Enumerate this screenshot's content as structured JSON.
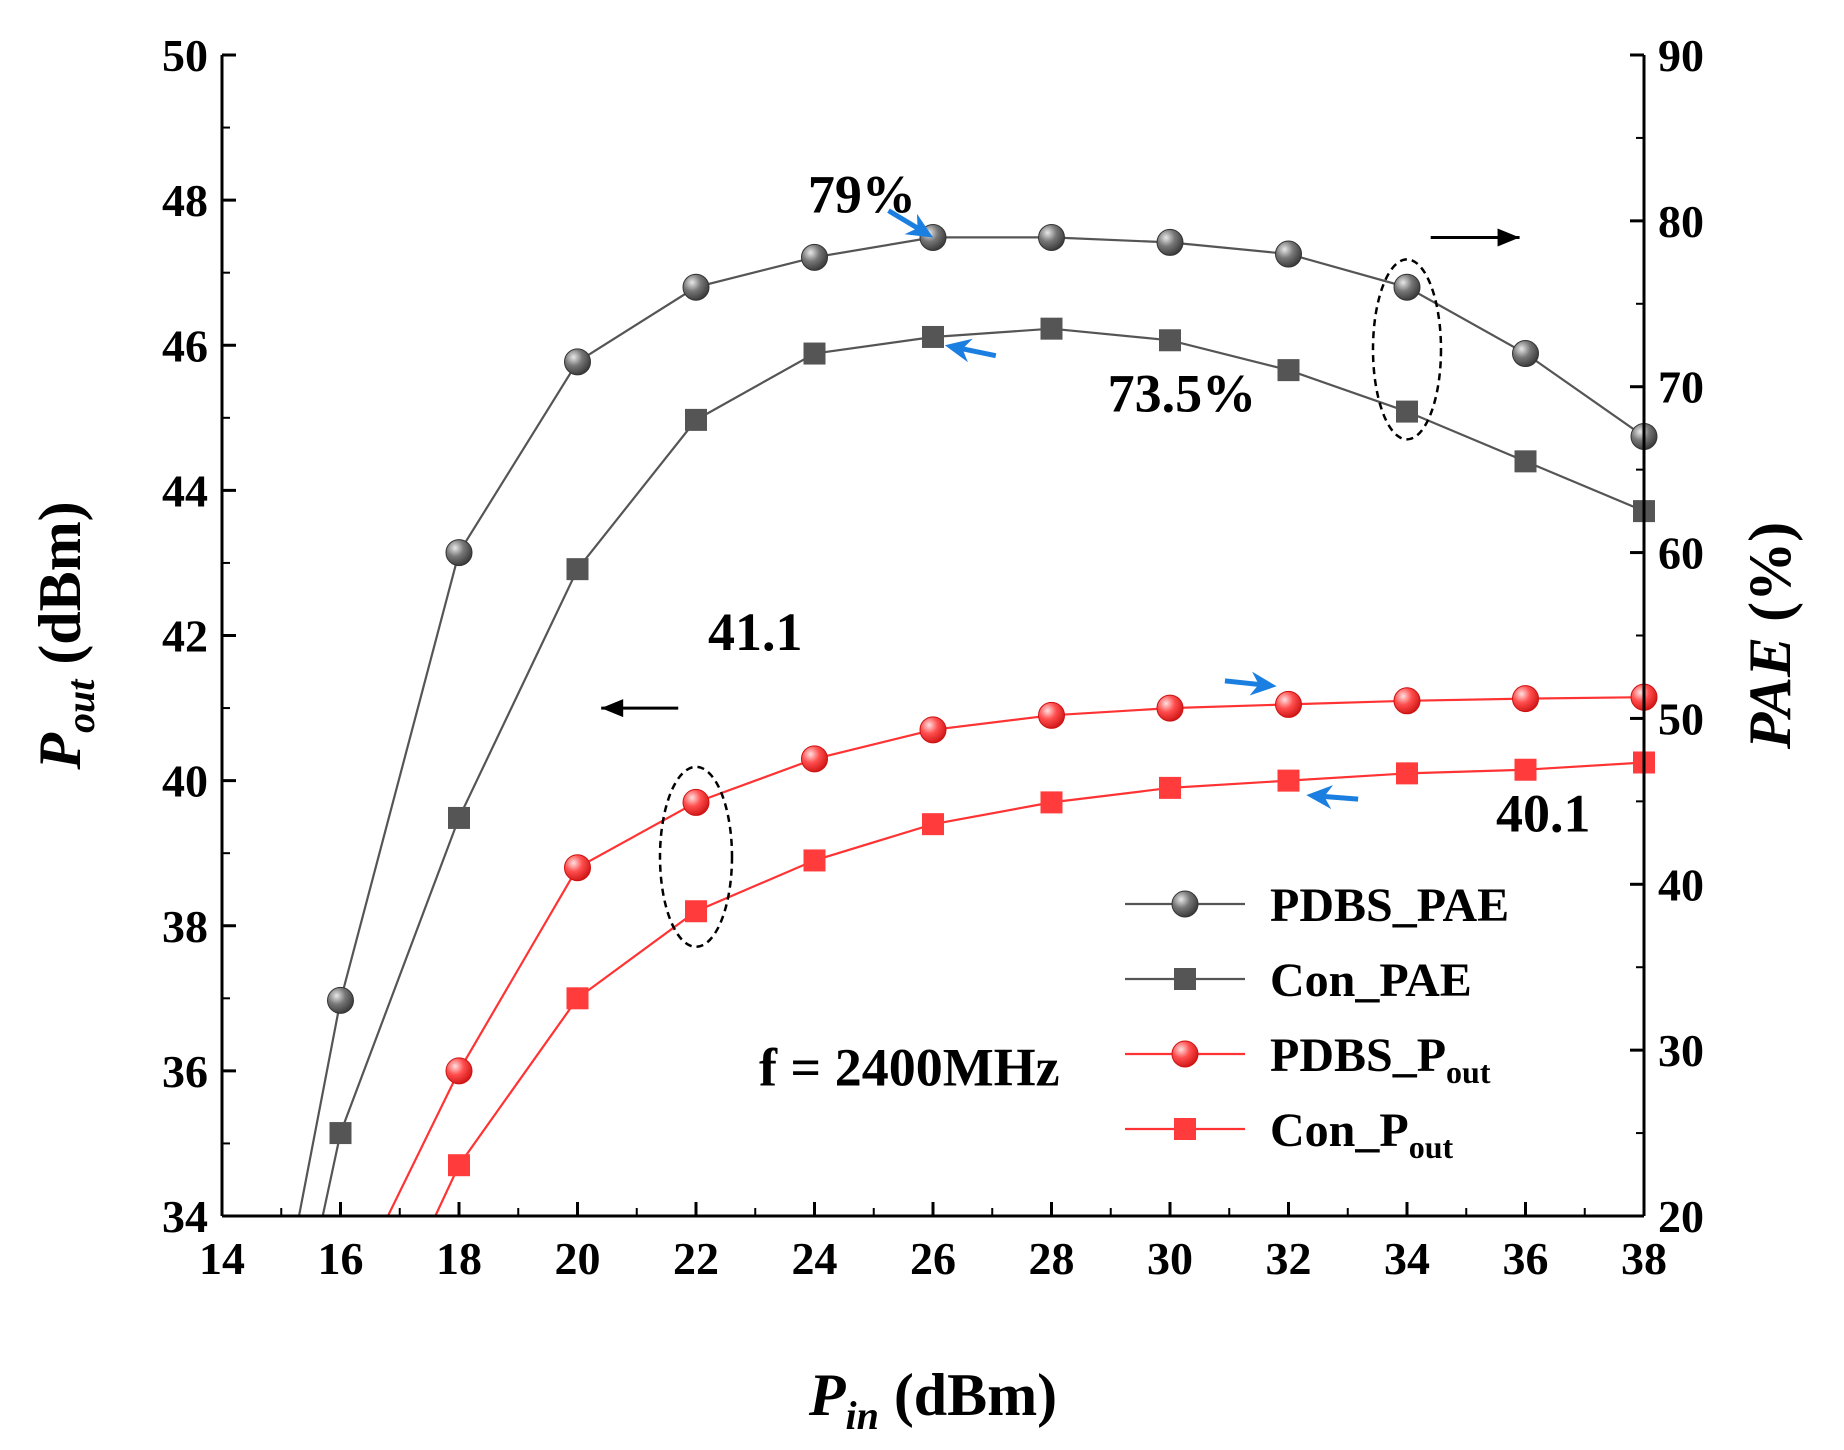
{
  "chart_data": {
    "type": "line",
    "x": [
      16,
      18,
      20,
      22,
      24,
      26,
      28,
      30,
      32,
      34,
      36,
      38
    ],
    "xlim": [
      14,
      38
    ],
    "xticks": [
      "14",
      "16",
      "18",
      "20",
      "22",
      "24",
      "26",
      "28",
      "30",
      "32",
      "34",
      "36",
      "38"
    ],
    "ylim_left": [
      34,
      50
    ],
    "yticks_left": [
      "34",
      "36",
      "38",
      "40",
      "42",
      "44",
      "46",
      "48",
      "50"
    ],
    "ylim_right": [
      20,
      90
    ],
    "yticks_right": [
      "20",
      "30",
      "40",
      "50",
      "60",
      "70",
      "80",
      "90"
    ],
    "xlabel": {
      "main": "P",
      "sub": "in",
      "unit": " (dBm)"
    },
    "ylabel_left": {
      "main": "P",
      "sub": "out",
      "unit": " (dBm)"
    },
    "ylabel_right": {
      "main": "PAE",
      "unit": " (%)"
    },
    "series": [
      {
        "name": "PDBS_PAE",
        "legend_main": "PDBS_PAE",
        "legend_sub": "",
        "axis": "right",
        "marker": "circle",
        "color": "#555555",
        "values": [
          33,
          60,
          71.5,
          76,
          77.8,
          79,
          79,
          78.7,
          78,
          76,
          72,
          67
        ],
        "lead_in": [
          15.3,
          16.0
        ]
      },
      {
        "name": "Con_PAE",
        "legend_main": "Con_PAE",
        "legend_sub": "",
        "axis": "right",
        "marker": "square",
        "color": "#555555",
        "values": [
          25,
          44,
          59,
          68,
          72,
          73,
          73.5,
          72.8,
          71,
          68.5,
          65.5,
          62.5
        ],
        "lead_in": [
          15.7,
          16.0
        ]
      },
      {
        "name": "PDBS_Pout",
        "legend_main": "PDBS_P",
        "legend_sub": "out",
        "axis": "left",
        "marker": "circle",
        "color": "#ff3333",
        "values": [
          null,
          36.0,
          38.8,
          39.7,
          40.3,
          40.7,
          40.9,
          41.0,
          41.05,
          41.1,
          41.13,
          41.15
        ],
        "lead_in": [
          16.8,
          18.0
        ]
      },
      {
        "name": "Con_Pout",
        "legend_main": "Con_P",
        "legend_sub": "out",
        "axis": "left",
        "marker": "square",
        "color": "#ff3333",
        "values": [
          null,
          34.7,
          37.0,
          38.2,
          38.9,
          39.4,
          39.7,
          39.9,
          40.0,
          40.1,
          40.15,
          40.25
        ],
        "lead_in": [
          17.6,
          18.0
        ]
      }
    ],
    "annotations": [
      {
        "text": "79%",
        "axis": "right",
        "x": 24.8,
        "y": 80.5,
        "arrow_to": [
          26,
          79
        ],
        "arrow_color": "#1a7fe0"
      },
      {
        "text": "73.5%",
        "axis": "right",
        "x": 30.2,
        "y": 68.5,
        "arrow_to": [
          26.2,
          72.5
        ],
        "arrow_color": "#1a7fe0"
      },
      {
        "text": "41.1",
        "axis": "left",
        "x": 23.0,
        "y": 41.8,
        "arrow_to": [
          31.8,
          41.3
        ],
        "arrow_color": "#1a7fe0"
      },
      {
        "text": "40.1",
        "axis": "left",
        "x": 36.3,
        "y": 39.3,
        "arrow_to": [
          32.3,
          39.8
        ],
        "arrow_color": "#1a7fe0"
      },
      {
        "text": "f = 2400MHz",
        "axis": "left",
        "x": 25.6,
        "y": 35.8
      }
    ],
    "legend_position": "bottom-right"
  }
}
